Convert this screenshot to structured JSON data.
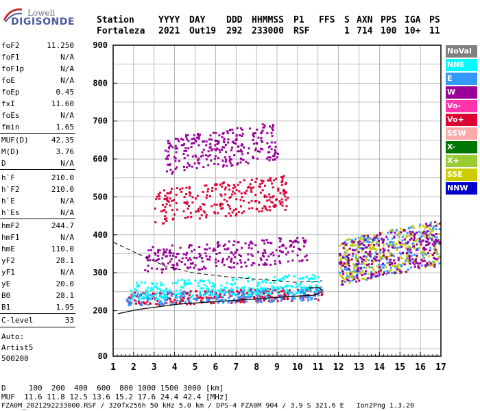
{
  "logo": {
    "line1": "Lowell",
    "line2": "DIGISONDE"
  },
  "header": {
    "row1": [
      "Station",
      "YYYY",
      "DAY",
      "DDD",
      "HHMMSS",
      "P1",
      "FFS",
      "S",
      "AXN",
      "PPS",
      "IGA",
      "PS"
    ],
    "row2": [
      "Fortaleza",
      "2021",
      "Out19",
      "292",
      "233000",
      "RSF",
      "1",
      "714",
      "100",
      "10+",
      "11"
    ]
  },
  "params": {
    "g1": [
      {
        "k": "foF2",
        "v": "11.250"
      },
      {
        "k": "foF1",
        "v": "N/A"
      },
      {
        "k": "foF1p",
        "v": "N/A"
      },
      {
        "k": "foE",
        "v": "N/A"
      },
      {
        "k": "foEp",
        "v": "0.45"
      },
      {
        "k": "fxI",
        "v": "11.60"
      },
      {
        "k": "foEs",
        "v": "N/A"
      },
      {
        "k": "fmin",
        "v": "1.65"
      }
    ],
    "g2": [
      {
        "k": "MUF(D)",
        "v": "42.35"
      },
      {
        "k": "M(D)",
        "v": "3.76"
      },
      {
        "k": "D",
        "v": "N/A"
      }
    ],
    "g3": [
      {
        "k": "h`F",
        "v": "210.0"
      },
      {
        "k": "h`F2",
        "v": "210.0"
      },
      {
        "k": "h`E",
        "v": "N/A"
      },
      {
        "k": "h`Es",
        "v": "N/A"
      }
    ],
    "g4": [
      {
        "k": "hmF2",
        "v": "244.7"
      },
      {
        "k": "hmF1",
        "v": "N/A"
      },
      {
        "k": "hmE",
        "v": "110.0"
      },
      {
        "k": "yF2",
        "v": "28.1"
      },
      {
        "k": "yF1",
        "v": "N/A"
      },
      {
        "k": "yE",
        "v": "20.0"
      },
      {
        "k": "B0",
        "v": "28.1"
      },
      {
        "k": "B1",
        "v": "1.95"
      }
    ],
    "clevel": {
      "k": "C-level",
      "v": "33"
    },
    "auto_lines": [
      "Auto:",
      "Artist5",
      "500200"
    ]
  },
  "legend": [
    {
      "label": "NoVal",
      "color": "#808080"
    },
    {
      "label": "NNE",
      "color": "#00ffff"
    },
    {
      "label": "E",
      "color": "#3399ff"
    },
    {
      "label": "W",
      "color": "#990099"
    },
    {
      "label": "Vo-",
      "color": "#ff33aa"
    },
    {
      "label": "Vo+",
      "color": "#dd0033"
    },
    {
      "label": "SSW",
      "color": "#ffaaaa"
    },
    {
      "label": "X-",
      "color": "#007700"
    },
    {
      "label": "X+",
      "color": "#99cc33"
    },
    {
      "label": "SSE",
      "color": "#cccc00"
    },
    {
      "label": "NNW",
      "color": "#0000cc"
    }
  ],
  "chart_data": {
    "type": "scatter",
    "xlim": [
      1,
      17
    ],
    "ylim": [
      80,
      900
    ],
    "x_ticks": [
      "1",
      "2",
      "3",
      "4",
      "5",
      "6",
      "7",
      "8",
      "9",
      "10",
      "11",
      "12",
      "13",
      "14",
      "15",
      "16",
      "17"
    ],
    "y_ticks": [
      "80",
      "200",
      "300",
      "400",
      "500",
      "600",
      "700",
      "800",
      "900"
    ],
    "grid": true,
    "clusters": [
      {
        "x": [
          1.6,
          11.2
        ],
        "y": [
          215,
          265
        ],
        "color": "#dd0033"
      },
      {
        "x": [
          1.6,
          11.2
        ],
        "y": [
          215,
          265
        ],
        "color": "#3399ff"
      },
      {
        "x": [
          1.8,
          11.0
        ],
        "y": [
          230,
          300
        ],
        "color": "#00ffff"
      },
      {
        "x": [
          2.5,
          10.5
        ],
        "y": [
          300,
          400
        ],
        "color": "#990099"
      },
      {
        "x": [
          3.0,
          9.5
        ],
        "y": [
          430,
          560
        ],
        "color": "#dd0033"
      },
      {
        "x": [
          3.5,
          9.0
        ],
        "y": [
          560,
          700
        ],
        "color": "#990099"
      },
      {
        "x": [
          12.0,
          16.9
        ],
        "y": [
          270,
          440
        ],
        "color": "#3399ff"
      },
      {
        "x": [
          12.0,
          16.9
        ],
        "y": [
          270,
          440
        ],
        "color": "#cccc00"
      },
      {
        "x": [
          12.0,
          16.9
        ],
        "y": [
          270,
          440
        ],
        "color": "#990099"
      }
    ]
  },
  "footer": {
    "line1": "D     100  200  400  600  800 1000 1500 3000 [km]",
    "line2": "MUF  11.6 11.8 12.5 13.6 15.2 17.6 24.4 42.4 [MHz]",
    "line3": "FZA0M_2021292233000.RSF / 320fx256h 50 kHz 5.0 km / DPS-4 FZA0M 904 / 3.9 S 321.6 E   Ion2Png 1.3.20"
  }
}
